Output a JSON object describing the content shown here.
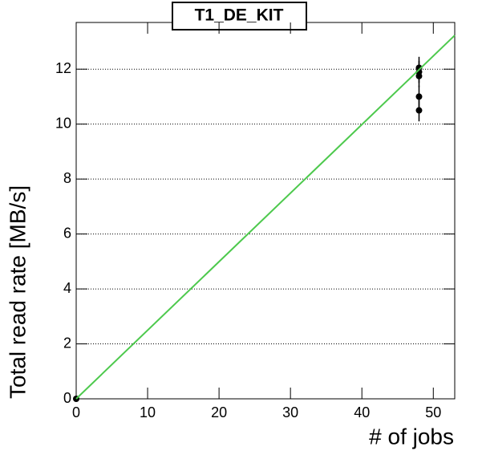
{
  "chart_data": {
    "type": "scatter",
    "title": "T1_DE_KIT",
    "x_label": "# of jobs",
    "y_label": "Total read rate [MB/s]",
    "xlim": [
      0,
      53
    ],
    "ylim": [
      0,
      13.7
    ],
    "xticks": [
      0,
      10,
      20,
      30,
      40,
      50
    ],
    "yticks": [
      0,
      2,
      4,
      6,
      8,
      10,
      12
    ],
    "grid": "y",
    "series": [
      {
        "type": "scatter",
        "color": "#000000",
        "x": [
          0,
          48,
          48,
          48,
          48,
          48
        ],
        "values": [
          0,
          12.05,
          11.9,
          11.75,
          11.0,
          10.5
        ],
        "errors": [
          0,
          0.4,
          0.4,
          0.4,
          0.4,
          0.4
        ]
      },
      {
        "type": "line",
        "color": "#4dc94d",
        "x": [
          0,
          53
        ],
        "values": [
          0,
          13.23
        ]
      }
    ]
  }
}
